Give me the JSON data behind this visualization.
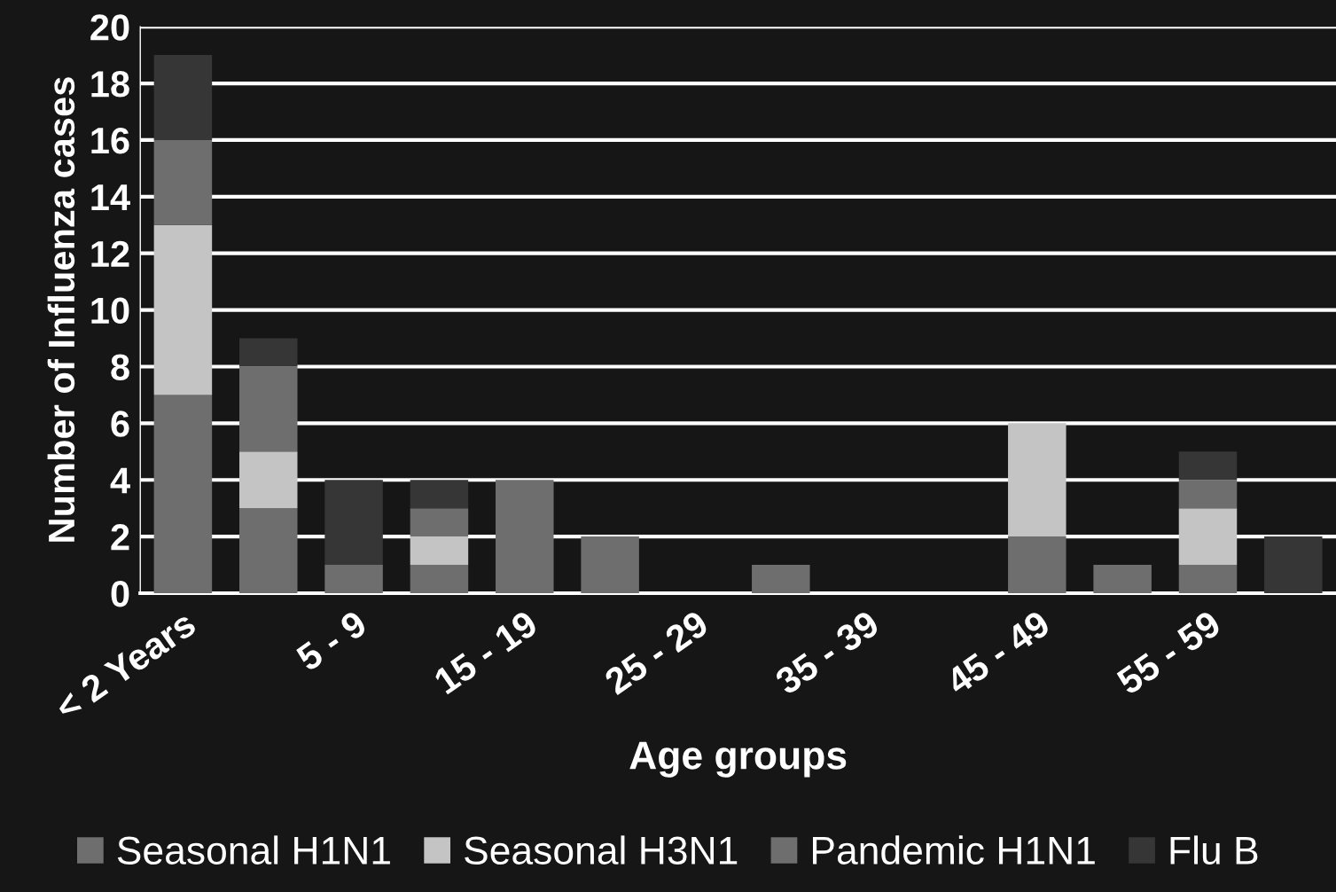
{
  "chart_data": {
    "type": "bar",
    "stacked": true,
    "xlabel": "Age groups",
    "ylabel": "Number of Influenza cases",
    "categories": [
      "< 2 Years",
      null,
      "5 - 9",
      null,
      "15 - 19",
      null,
      "25 - 29",
      null,
      "35 - 39",
      null,
      "45 - 49",
      null,
      "55 - 59",
      null
    ],
    "series": [
      {
        "name": "Seasonal H1N1",
        "color": "#6e6e6e",
        "values": [
          7,
          3,
          1,
          1,
          4,
          2,
          0,
          1,
          0,
          0,
          2,
          1,
          1,
          0
        ]
      },
      {
        "name": "Seasonal H3N1",
        "color": "#c4c4c4",
        "values": [
          6,
          2,
          0,
          1,
          0,
          0,
          0,
          0,
          0,
          0,
          4,
          0,
          2,
          0
        ]
      },
      {
        "name": "Pandemic H1N1",
        "color": "#6e6e6e",
        "values": [
          3,
          3,
          0,
          1,
          0,
          0,
          0,
          0,
          0,
          0,
          0,
          0,
          1,
          0
        ]
      },
      {
        "name": "Flu B",
        "color": "#363636",
        "values": [
          3,
          1,
          3,
          1,
          0,
          0,
          0,
          0,
          0,
          0,
          0,
          0,
          1,
          2
        ]
      }
    ],
    "ylim": [
      0,
      20
    ],
    "yticks": [
      0,
      2,
      4,
      6,
      8,
      10,
      12,
      14,
      16,
      18,
      20
    ],
    "grid": "y",
    "legend": "bottom"
  }
}
